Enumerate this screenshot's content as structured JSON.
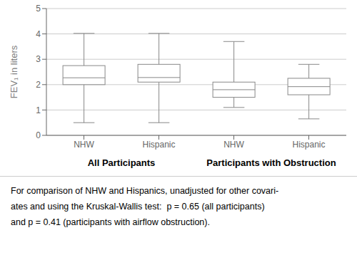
{
  "chart_data": {
    "type": "box",
    "ylabel": "FEV₁ in liters",
    "categories": [
      "NHW",
      "Hispanic",
      "NHW",
      "Hispanic"
    ],
    "groups": [
      "All Participants",
      "All Participants",
      "Participants with Obstruction",
      "Participants with Obstruction"
    ],
    "values": [
      {
        "low": 0.5,
        "q1": 2.0,
        "median": 2.27,
        "q3": 2.75,
        "high": 4.02
      },
      {
        "low": 0.5,
        "q1": 2.1,
        "median": 2.28,
        "q3": 2.8,
        "high": 4.02
      },
      {
        "low": 1.1,
        "q1": 1.5,
        "median": 1.8,
        "q3": 2.1,
        "high": 3.7
      },
      {
        "low": 0.65,
        "q1": 1.6,
        "median": 1.92,
        "q3": 2.25,
        "high": 2.8
      }
    ],
    "ylim": [
      0,
      5
    ],
    "yticks": [
      0,
      1,
      2,
      3,
      4,
      5
    ],
    "grid": true,
    "color": "#888888",
    "annotations": [
      "For comparison of NHW and Hispanics, unadjusted for other covari-",
      "ates and using the Kruskal-Wallis test:  p = 0.65 (all participants)",
      "and p = 0.41 (participants with airflow obstruction)."
    ]
  }
}
